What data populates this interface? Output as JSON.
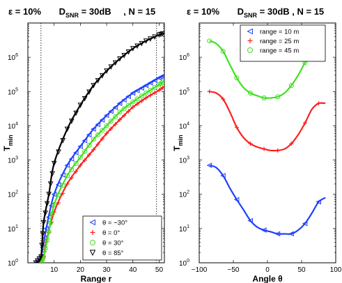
{
  "figure": {
    "left_title": {
      "eps": "ε = 10%",
      "d": "D",
      "d_sub": "SNR",
      "snr": " = 30dB",
      "n": ", N = 15"
    },
    "right_title": {
      "eps": "ε = 10%",
      "d": "D",
      "d_sub": "SNR",
      "snr": " = 30dB",
      "n": " , N = 15"
    }
  },
  "chart_data": [
    {
      "type": "line",
      "xlabel": "Range  r",
      "ylabel": "T",
      "ylabel_sub": "min",
      "xlim": [
        0,
        52
      ],
      "ylim_log10": [
        0,
        7
      ],
      "y_scale": "log",
      "x_ticks": [
        10,
        20,
        30,
        40,
        50
      ],
      "y_ticks": [
        {
          "base": "10",
          "exp": "0"
        },
        {
          "base": "10",
          "exp": "1"
        },
        {
          "base": "10",
          "exp": "2"
        },
        {
          "base": "10",
          "exp": "3"
        },
        {
          "base": "10",
          "exp": "4"
        },
        {
          "base": "10",
          "exp": "5"
        },
        {
          "base": "10",
          "exp": "6"
        }
      ],
      "vlines": [
        5,
        49
      ],
      "legend_position": "bottom-right",
      "series": [
        {
          "name": "θ = −30°",
          "color": "#2040ff",
          "marker": "triangle-left",
          "x": [
            3,
            5,
            7,
            10,
            15,
            20,
            25,
            30,
            35,
            40,
            45,
            50,
            52
          ],
          "y": [
            1,
            1.5,
            10,
            100,
            700,
            2500,
            8000,
            20000,
            45000,
            90000,
            150000,
            250000,
            300000
          ]
        },
        {
          "name": "θ = 0°",
          "color": "#ff2020",
          "marker": "plus",
          "x": [
            5,
            6,
            7,
            10,
            15,
            20,
            25,
            30,
            35,
            40,
            45,
            50,
            52
          ],
          "y": [
            1,
            1.5,
            4,
            30,
            200,
            700,
            2000,
            6000,
            15000,
            35000,
            65000,
            110000,
            140000
          ]
        },
        {
          "name": "θ = 30°",
          "color": "#40e020",
          "marker": "circle",
          "x": [
            5,
            6,
            8,
            10,
            15,
            20,
            25,
            30,
            35,
            40,
            45,
            50,
            52
          ],
          "y": [
            1,
            1.5,
            8,
            50,
            350,
            1200,
            4000,
            10000,
            25000,
            50000,
            90000,
            160000,
            200000
          ]
        },
        {
          "name": "θ = 85°",
          "color": "#000000",
          "marker": "triangle-down",
          "x": [
            3,
            5,
            6,
            8,
            10,
            15,
            20,
            25,
            30,
            35,
            40,
            45,
            50,
            52
          ],
          "y": [
            1,
            1.5,
            15,
            100,
            800,
            8000,
            40000,
            150000,
            400000,
            900000,
            1800000,
            3000000,
            4500000,
            5000000
          ]
        }
      ]
    },
    {
      "type": "line",
      "xlabel": "Angle  θ",
      "ylabel": "T",
      "ylabel_sub": "min",
      "xlim": [
        -100,
        100
      ],
      "ylim_log10": [
        0,
        7
      ],
      "y_scale": "log",
      "x_ticks": [
        -100,
        -50,
        0,
        50,
        100
      ],
      "x_tick_labels": [
        "−100",
        "−50",
        "0",
        "50",
        "100"
      ],
      "y_ticks": [
        {
          "base": "10",
          "exp": "0"
        },
        {
          "base": "10",
          "exp": "1"
        },
        {
          "base": "10",
          "exp": "2"
        },
        {
          "base": "10",
          "exp": "3"
        },
        {
          "base": "10",
          "exp": "4"
        },
        {
          "base": "10",
          "exp": "5"
        },
        {
          "base": "10",
          "exp": "6"
        }
      ],
      "legend_position": "top-right",
      "series": [
        {
          "name": "range = 10 m",
          "color": "#2040ff",
          "marker": "triangle-left",
          "x": [
            -85,
            -75,
            -65,
            -55,
            -45,
            -35,
            -25,
            -15,
            -5,
            5,
            15,
            25,
            35,
            45,
            55,
            65,
            75,
            85
          ],
          "y": [
            700,
            600,
            350,
            150,
            70,
            35,
            17,
            11,
            9,
            8,
            7,
            7,
            7,
            9,
            14,
            28,
            60,
            80
          ]
        },
        {
          "name": "range = 25 m",
          "color": "#ff2020",
          "marker": "plus",
          "x": [
            -85,
            -75,
            -65,
            -55,
            -45,
            -35,
            -25,
            -15,
            -5,
            5,
            15,
            25,
            35,
            45,
            55,
            65,
            75,
            85
          ],
          "y": [
            100000,
            90000,
            60000,
            25000,
            9000,
            4500,
            3000,
            2400,
            2100,
            1900,
            1900,
            2100,
            3000,
            5500,
            12000,
            30000,
            45000,
            45000
          ]
        },
        {
          "name": "range = 45 m",
          "color": "#40e020",
          "marker": "circle",
          "x": [
            -85,
            -75,
            -65,
            -55,
            -45,
            -35,
            -25,
            -15,
            -5,
            5,
            15,
            25,
            35,
            45,
            55,
            65,
            75,
            85
          ],
          "y": [
            3000000,
            2500000,
            1500000,
            600000,
            250000,
            130000,
            90000,
            75000,
            65000,
            65000,
            70000,
            90000,
            150000,
            300000,
            700000,
            1500000,
            1900000,
            1900000
          ]
        }
      ]
    }
  ]
}
